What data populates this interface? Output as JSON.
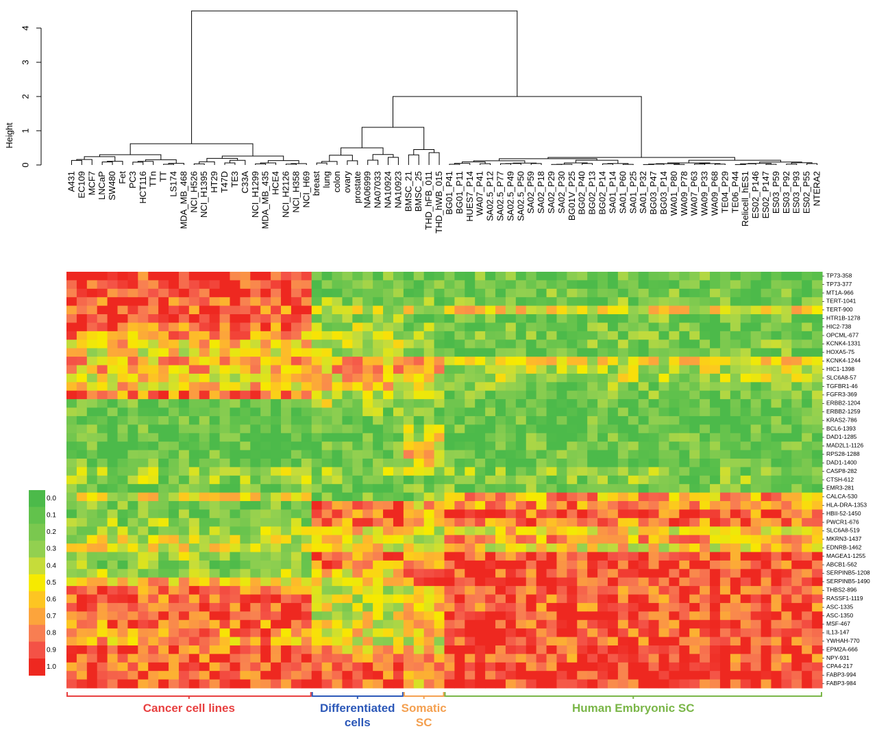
{
  "chart_data": [
    {
      "type": "dendrogram",
      "ylabel": "Height",
      "yticks": [
        0,
        1,
        2,
        3,
        4
      ],
      "ylim": [
        0,
        4.5
      ],
      "root_height": 4.5,
      "leaves": [
        "A431",
        "EC109",
        "MCF7",
        "LNCaP",
        "SW480",
        "Fet",
        "PC3",
        "HCT116",
        "TTn",
        "TT",
        "LS174",
        "MDA_MB_468",
        "NCI_H526",
        "NCI_H1395",
        "HT29",
        "T47D",
        "TE3",
        "C33A",
        "NCI_H1299",
        "MDA_MB_435",
        "HCE4",
        "NCI_H2126",
        "NCI_H358",
        "NCI_H69",
        "breast",
        "lung",
        "colon",
        "ovary",
        "prostate",
        "NA06999",
        "NA07033",
        "NA10924",
        "NA10923",
        "BMSC_21",
        "BMSC_25",
        "THD_hFB_011",
        "THD_hWB_015",
        "BG01_P41",
        "BG01_P11",
        "HUES7_P14",
        "WA07_P41",
        "SA02.5_P12",
        "SA02.5_P77",
        "SA02.5_P49",
        "SA02.5_P50",
        "SA02_P59",
        "SA02_P18",
        "SA02_P29",
        "SA02_P30",
        "BG01V_P25",
        "BG02_P40",
        "BG02_P13",
        "BG02_P14",
        "SA01_P14",
        "SA01_P60",
        "SA01_P25",
        "SA01_P32",
        "BG03_P47",
        "BG03_P14",
        "WA01_P80",
        "WA09_P78",
        "WA07_P63",
        "WA09_P33",
        "WA09_P68",
        "TE04_P29",
        "TE06_P44",
        "Relicell_hES1",
        "ES02_P146",
        "ES02_P147",
        "ES03_P59",
        "ES03_P92",
        "ES03_P93",
        "ES02_P55",
        "NTERA2"
      ],
      "top_splits": [
        {
          "group": "Cancer cell lines",
          "height": 0.62
        },
        {
          "group": "Differentiated cells + Somatic SC",
          "height": 1.1
        },
        {
          "group": "Differentiated + Somatic + Human Embryonic SC",
          "height": 2.0
        },
        {
          "group": "Human Embryonic SC",
          "height": 0.22
        }
      ]
    },
    {
      "type": "heatmap",
      "genes": [
        "TP73-358",
        "TP73-377",
        "MT1A-966",
        "TERT-1041",
        "TERT-900",
        "HTR1B-1278",
        "HIC2-738",
        "OPCML-677",
        "KCNK4-1331",
        "HOXA5-75",
        "KCNK4-1244",
        "HIC1-1398",
        "SLC6A8-57",
        "TGFBR1-46",
        "FGFR3-369",
        "ERBB2-1204",
        "ERBB2-1259",
        "KRAS2-786",
        "BCL6-1393",
        "DAD1-1285",
        "MAD2L1-1126",
        "RPS28-1288",
        "DAD1-1400",
        "CASP8-282",
        "CTSH-612",
        "EMR3-281",
        "CALCA-530",
        "HLA-DRA-1353",
        "HBII-52-1450",
        "PWCR1-676",
        "SLC6A8-519",
        "MKRN3-1437",
        "EDNRB-1462",
        "MAGEA1-1255",
        "ABCB1-562",
        "SERPINB5-1208",
        "SERPINB5-1490",
        "THBS2-896",
        "RASSF1-1119",
        "ASC-1335",
        "ASC-1350",
        "MSF-467",
        "IL13-147",
        "YWHAH-770",
        "EPM2A-666",
        "NPY-931",
        "CPA4-217",
        "FABP3-994",
        "FABP3-984"
      ],
      "group_mean_values": {
        "groups": [
          "Cancer cell lines",
          "Differentiated cells",
          "Somatic SC",
          "Human Embryonic SC"
        ],
        "group_sizes": [
          24,
          9,
          4,
          37
        ],
        "rows": [
          [
            0.93,
            0.15,
            0.12,
            0.12
          ],
          [
            0.95,
            0.13,
            0.12,
            0.12
          ],
          [
            0.92,
            0.18,
            0.15,
            0.15
          ],
          [
            0.9,
            0.25,
            0.18,
            0.18
          ],
          [
            0.85,
            0.35,
            0.45,
            0.5
          ],
          [
            0.9,
            0.2,
            0.18,
            0.15
          ],
          [
            0.82,
            0.3,
            0.22,
            0.15
          ],
          [
            0.72,
            0.35,
            0.25,
            0.15
          ],
          [
            0.6,
            0.35,
            0.25,
            0.18
          ],
          [
            0.52,
            0.3,
            0.35,
            0.15
          ],
          [
            0.65,
            0.65,
            0.75,
            0.48
          ],
          [
            0.65,
            0.65,
            0.7,
            0.35
          ],
          [
            0.55,
            0.6,
            0.45,
            0.35
          ],
          [
            0.6,
            0.55,
            0.35,
            0.2
          ],
          [
            0.8,
            0.35,
            0.3,
            0.15
          ],
          [
            0.1,
            0.35,
            0.15,
            0.1
          ],
          [
            0.1,
            0.22,
            0.12,
            0.1
          ],
          [
            0.1,
            0.12,
            0.12,
            0.1
          ],
          [
            0.1,
            0.1,
            0.35,
            0.1
          ],
          [
            0.1,
            0.1,
            0.45,
            0.1
          ],
          [
            0.1,
            0.1,
            0.55,
            0.1
          ],
          [
            0.1,
            0.1,
            0.6,
            0.1
          ],
          [
            0.12,
            0.12,
            0.45,
            0.1
          ],
          [
            0.3,
            0.25,
            0.4,
            0.22
          ],
          [
            0.25,
            0.22,
            0.22,
            0.22
          ],
          [
            0.12,
            0.12,
            0.15,
            0.15
          ],
          [
            0.45,
            0.2,
            0.2,
            0.7
          ],
          [
            0.2,
            0.85,
            0.65,
            0.75
          ],
          [
            0.15,
            0.85,
            0.75,
            0.82
          ],
          [
            0.25,
            0.8,
            0.7,
            0.8
          ],
          [
            0.3,
            0.6,
            0.45,
            0.55
          ],
          [
            0.4,
            0.55,
            0.4,
            0.7
          ],
          [
            0.45,
            0.55,
            0.5,
            0.55
          ],
          [
            0.3,
            0.8,
            0.65,
            0.9
          ],
          [
            0.2,
            0.75,
            0.6,
            0.9
          ],
          [
            0.3,
            0.55,
            0.7,
            0.92
          ],
          [
            0.6,
            0.45,
            0.75,
            0.95
          ],
          [
            0.85,
            0.35,
            0.55,
            0.88
          ],
          [
            0.85,
            0.35,
            0.55,
            0.88
          ],
          [
            0.88,
            0.4,
            0.55,
            0.88
          ],
          [
            0.88,
            0.45,
            0.55,
            0.9
          ],
          [
            0.78,
            0.5,
            0.55,
            0.9
          ],
          [
            0.75,
            0.55,
            0.6,
            0.9
          ],
          [
            0.7,
            0.5,
            0.5,
            0.9
          ],
          [
            0.85,
            0.65,
            0.6,
            0.92
          ],
          [
            0.88,
            0.7,
            0.65,
            0.88
          ],
          [
            0.88,
            0.8,
            0.7,
            0.95
          ],
          [
            0.9,
            0.88,
            0.65,
            0.95
          ],
          [
            0.92,
            0.88,
            0.6,
            0.95
          ]
        ]
      },
      "colorbar": {
        "ticks": [
          "0.0",
          "0.1",
          "0.2",
          "0.3",
          "0.4",
          "0.5",
          "0.6",
          "0.7",
          "0.8",
          "0.9",
          "1.0"
        ],
        "colors": [
          "#4cba4a",
          "#62c24c",
          "#7ac84f",
          "#92d050",
          "#c6dc3a",
          "#f6ea00",
          "#fdc522",
          "#fca43c",
          "#f87e52",
          "#f45246",
          "#ee2820"
        ]
      },
      "groups": [
        {
          "label_lines": [
            "Cancer cell lines"
          ],
          "color": "#e84040"
        },
        {
          "label_lines": [
            "Differentiated",
            "cells"
          ],
          "color": "#2c58b8"
        },
        {
          "label_lines": [
            "Somatic",
            "SC"
          ],
          "color": "#f4a050"
        },
        {
          "label_lines": [
            "Human Embryonic SC"
          ],
          "color": "#7ab648"
        }
      ]
    }
  ]
}
